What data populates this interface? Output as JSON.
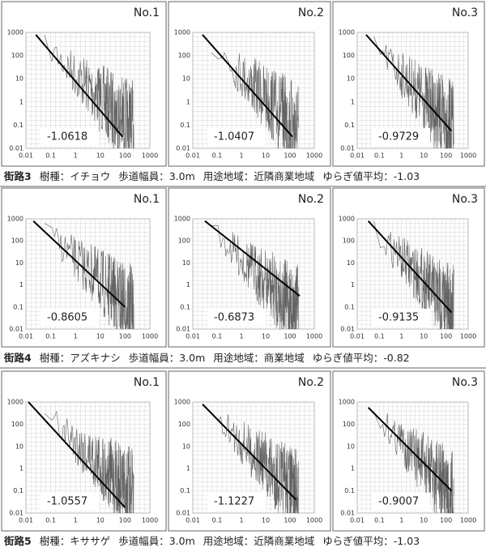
{
  "axis": {
    "yticks": [
      "1000",
      "100",
      "10",
      "1",
      "0.1",
      "0.01"
    ],
    "xticks": [
      "0.01",
      "0.1",
      "1",
      "10",
      "100",
      "1000"
    ]
  },
  "groups": [
    {
      "street": "街路3",
      "species": "樹種：イチョウ",
      "width": "歩道幅員：3.0m",
      "zone": "用途地域：近隣商業地域",
      "average": "ゆらぎ値平均：-1.03",
      "panels": [
        {
          "label": "No.1",
          "slope": "-1.0618"
        },
        {
          "label": "No.2",
          "slope": "-1.0407"
        },
        {
          "label": "No.3",
          "slope": "-0.9729"
        }
      ]
    },
    {
      "street": "街路4",
      "species": "樹種：アズキナシ",
      "width": "歩道幅員：3.0m",
      "zone": "用途地域：商業地域",
      "average": "ゆらぎ値平均：-0.82",
      "panels": [
        {
          "label": "No.1",
          "slope": "-0.8605"
        },
        {
          "label": "No.2",
          "slope": "-0.6873"
        },
        {
          "label": "No.3",
          "slope": "-0.9135"
        }
      ]
    },
    {
      "street": "街路5",
      "species": "樹種：キササゲ",
      "width": "歩道幅員：3.0m",
      "zone": "用途地域：近隣商業地域",
      "average": "ゆらぎ値平均：-1.03",
      "panels": [
        {
          "label": "No.1",
          "slope": "-1.0557"
        },
        {
          "label": "No.2",
          "slope": "-1.1227"
        },
        {
          "label": "No.3",
          "slope": "-0.9007"
        }
      ]
    }
  ]
}
